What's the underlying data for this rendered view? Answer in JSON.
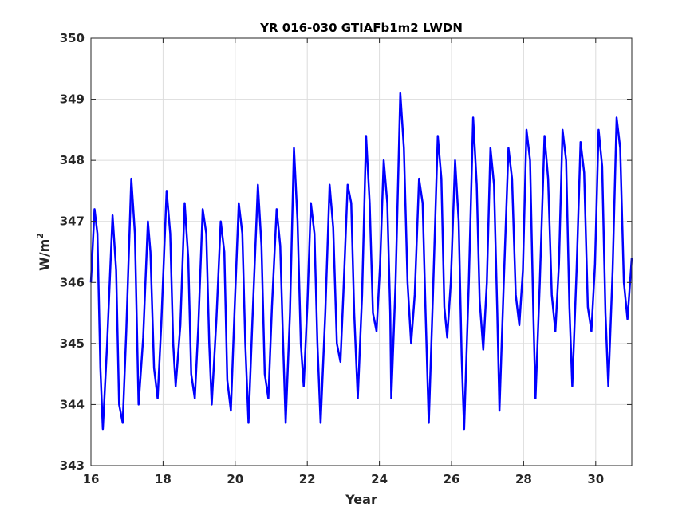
{
  "chart_data": {
    "type": "line",
    "title": "YR 016-030 GTIAFb1m2 LWDN",
    "xlabel": "Year",
    "ylabel_base": "W/m",
    "ylabel_sup": "2",
    "xlim": [
      16,
      31
    ],
    "ylim": [
      343,
      350
    ],
    "xticks": [
      "16",
      "18",
      "20",
      "22",
      "24",
      "26",
      "28",
      "30"
    ],
    "yticks": [
      "343",
      "344",
      "345",
      "346",
      "347",
      "348",
      "349",
      "350"
    ],
    "grid": true,
    "series": [
      {
        "color": "#0000ff",
        "points": [
          [
            16.0,
            346.0
          ],
          [
            16.1,
            347.2
          ],
          [
            16.18,
            346.8
          ],
          [
            16.26,
            344.6
          ],
          [
            16.33,
            343.6
          ],
          [
            16.45,
            345.0
          ],
          [
            16.6,
            347.1
          ],
          [
            16.7,
            346.2
          ],
          [
            16.78,
            344.0
          ],
          [
            16.88,
            343.7
          ],
          [
            16.98,
            345.2
          ],
          [
            17.12,
            347.7
          ],
          [
            17.22,
            346.8
          ],
          [
            17.32,
            344.0
          ],
          [
            17.45,
            345.1
          ],
          [
            17.58,
            347.0
          ],
          [
            17.65,
            346.5
          ],
          [
            17.75,
            344.6
          ],
          [
            17.85,
            344.1
          ],
          [
            17.95,
            345.3
          ],
          [
            18.1,
            347.5
          ],
          [
            18.2,
            346.8
          ],
          [
            18.28,
            345.0
          ],
          [
            18.35,
            344.3
          ],
          [
            18.48,
            345.3
          ],
          [
            18.6,
            347.3
          ],
          [
            18.7,
            346.4
          ],
          [
            18.78,
            344.5
          ],
          [
            18.88,
            344.1
          ],
          [
            18.98,
            345.3
          ],
          [
            19.1,
            347.2
          ],
          [
            19.2,
            346.8
          ],
          [
            19.28,
            345.0
          ],
          [
            19.35,
            344.0
          ],
          [
            19.48,
            345.4
          ],
          [
            19.6,
            347.0
          ],
          [
            19.7,
            346.5
          ],
          [
            19.78,
            344.4
          ],
          [
            19.88,
            343.9
          ],
          [
            19.98,
            345.5
          ],
          [
            20.1,
            347.3
          ],
          [
            20.2,
            346.8
          ],
          [
            20.28,
            345.0
          ],
          [
            20.37,
            343.7
          ],
          [
            20.48,
            345.4
          ],
          [
            20.63,
            347.6
          ],
          [
            20.73,
            346.6
          ],
          [
            20.82,
            344.5
          ],
          [
            20.92,
            344.1
          ],
          [
            21.02,
            345.6
          ],
          [
            21.15,
            347.2
          ],
          [
            21.25,
            346.6
          ],
          [
            21.33,
            345.0
          ],
          [
            21.4,
            343.7
          ],
          [
            21.52,
            345.5
          ],
          [
            21.63,
            348.2
          ],
          [
            21.73,
            347.0
          ],
          [
            21.82,
            345.0
          ],
          [
            21.9,
            344.3
          ],
          [
            22.0,
            345.6
          ],
          [
            22.1,
            347.3
          ],
          [
            22.2,
            346.8
          ],
          [
            22.28,
            345.0
          ],
          [
            22.37,
            343.7
          ],
          [
            22.5,
            345.5
          ],
          [
            22.62,
            347.6
          ],
          [
            22.72,
            346.9
          ],
          [
            22.82,
            345.0
          ],
          [
            22.92,
            344.7
          ],
          [
            23.0,
            345.8
          ],
          [
            23.12,
            347.6
          ],
          [
            23.22,
            347.3
          ],
          [
            23.3,
            345.5
          ],
          [
            23.4,
            344.1
          ],
          [
            23.52,
            345.8
          ],
          [
            23.63,
            348.4
          ],
          [
            23.73,
            347.3
          ],
          [
            23.82,
            345.5
          ],
          [
            23.92,
            345.2
          ],
          [
            24.02,
            346.3
          ],
          [
            24.12,
            348.0
          ],
          [
            24.22,
            347.3
          ],
          [
            24.3,
            345.5
          ],
          [
            24.33,
            344.1
          ],
          [
            24.45,
            346.0
          ],
          [
            24.58,
            349.1
          ],
          [
            24.68,
            348.2
          ],
          [
            24.78,
            346.0
          ],
          [
            24.88,
            345.0
          ],
          [
            24.98,
            345.8
          ],
          [
            25.1,
            347.7
          ],
          [
            25.2,
            347.3
          ],
          [
            25.28,
            345.5
          ],
          [
            25.37,
            343.7
          ],
          [
            25.48,
            345.7
          ],
          [
            25.62,
            348.4
          ],
          [
            25.72,
            347.7
          ],
          [
            25.8,
            345.6
          ],
          [
            25.88,
            345.1
          ],
          [
            25.98,
            346.0
          ],
          [
            26.1,
            348.0
          ],
          [
            26.2,
            347.0
          ],
          [
            26.28,
            344.8
          ],
          [
            26.35,
            343.6
          ],
          [
            26.48,
            346.0
          ],
          [
            26.6,
            348.7
          ],
          [
            26.7,
            347.6
          ],
          [
            26.78,
            345.7
          ],
          [
            26.88,
            344.9
          ],
          [
            26.98,
            346.0
          ],
          [
            27.08,
            348.2
          ],
          [
            27.18,
            347.6
          ],
          [
            27.27,
            345.5
          ],
          [
            27.33,
            343.9
          ],
          [
            27.45,
            346.0
          ],
          [
            27.58,
            348.2
          ],
          [
            27.68,
            347.7
          ],
          [
            27.78,
            345.8
          ],
          [
            27.88,
            345.3
          ],
          [
            27.98,
            346.2
          ],
          [
            28.08,
            348.5
          ],
          [
            28.18,
            348.0
          ],
          [
            28.27,
            345.5
          ],
          [
            28.33,
            344.1
          ],
          [
            28.45,
            346.0
          ],
          [
            28.58,
            348.4
          ],
          [
            28.68,
            347.7
          ],
          [
            28.78,
            345.8
          ],
          [
            28.88,
            345.2
          ],
          [
            28.98,
            346.3
          ],
          [
            29.08,
            348.5
          ],
          [
            29.18,
            348.0
          ],
          [
            29.27,
            345.6
          ],
          [
            29.35,
            344.3
          ],
          [
            29.47,
            346.2
          ],
          [
            29.58,
            348.3
          ],
          [
            29.68,
            347.8
          ],
          [
            29.78,
            345.6
          ],
          [
            29.88,
            345.2
          ],
          [
            29.98,
            346.3
          ],
          [
            30.08,
            348.5
          ],
          [
            30.18,
            347.9
          ],
          [
            30.27,
            345.5
          ],
          [
            30.35,
            344.3
          ],
          [
            30.47,
            346.2
          ],
          [
            30.58,
            348.7
          ],
          [
            30.68,
            348.2
          ],
          [
            30.78,
            346.0
          ],
          [
            30.88,
            345.4
          ],
          [
            31.0,
            346.4
          ]
        ]
      }
    ]
  }
}
